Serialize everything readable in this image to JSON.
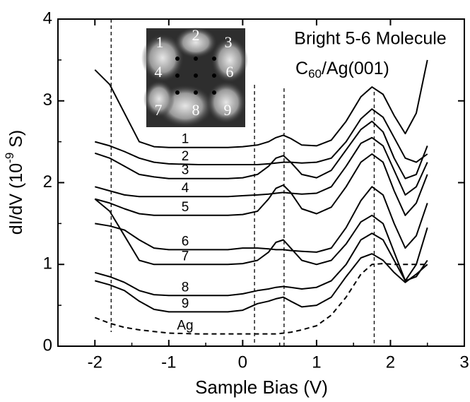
{
  "chart_data": {
    "type": "line",
    "annotation": {
      "title": "Bright 5-6 Molecule",
      "formula": [
        "C",
        "60",
        "/Ag(001)"
      ]
    },
    "x_label": "Sample Bias (V)",
    "y_label": [
      "dI/dV (10",
      "-9",
      " S)"
    ],
    "xlim": [
      -2.5,
      3
    ],
    "ylim": [
      0,
      4
    ],
    "xticks": [
      -2,
      -1,
      0,
      1,
      2,
      3
    ],
    "yticks": [
      0,
      1,
      2,
      3,
      4
    ],
    "vlines": [
      -1.78,
      0.16,
      0.56,
      1.78
    ],
    "inset_labels": [
      "1",
      "2",
      "3",
      "4",
      "6",
      "7",
      "8",
      "9"
    ],
    "x": [
      -2,
      -1.8,
      -1.6,
      -1.4,
      -1.2,
      -1,
      -0.6,
      -0.2,
      0,
      0.2,
      0.35,
      0.45,
      0.55,
      0.65,
      0.8,
      1.0,
      1.2,
      1.4,
      1.6,
      1.75,
      1.9,
      2.05,
      2.2,
      2.35,
      2.5
    ],
    "series": [
      {
        "name": "1",
        "color": "#000000",
        "values": [
          3.38,
          3.2,
          2.85,
          2.5,
          2.44,
          2.43,
          2.43,
          2.43,
          2.44,
          2.46,
          2.5,
          2.55,
          2.58,
          2.54,
          2.46,
          2.45,
          2.52,
          2.75,
          3.05,
          3.17,
          3.08,
          2.82,
          2.6,
          2.85,
          3.5
        ]
      },
      {
        "name": "2",
        "color": "#000000",
        "values": [
          2.5,
          2.45,
          2.38,
          2.3,
          2.25,
          2.23,
          2.22,
          2.22,
          2.22,
          2.22,
          2.23,
          2.24,
          2.25,
          2.25,
          2.24,
          2.25,
          2.3,
          2.5,
          2.78,
          2.9,
          2.8,
          2.55,
          2.3,
          2.25,
          2.35
        ]
      },
      {
        "name": "3",
        "color": "#000000",
        "values": [
          2.36,
          2.3,
          2.2,
          2.1,
          2.07,
          2.05,
          2.05,
          2.05,
          2.06,
          2.1,
          2.2,
          2.3,
          2.33,
          2.25,
          2.1,
          2.06,
          2.15,
          2.4,
          2.65,
          2.75,
          2.62,
          2.3,
          2.05,
          2.1,
          2.45
        ]
      },
      {
        "name": "4",
        "color": "#000000",
        "values": [
          1.95,
          1.9,
          1.85,
          1.83,
          1.83,
          1.83,
          1.83,
          1.83,
          1.84,
          1.85,
          1.86,
          1.87,
          1.88,
          1.87,
          1.86,
          1.87,
          1.95,
          2.2,
          2.48,
          2.55,
          2.45,
          2.15,
          1.85,
          1.95,
          2.25
        ]
      },
      {
        "name": "5",
        "color": "#000000",
        "values": [
          1.8,
          1.75,
          1.68,
          1.62,
          1.6,
          1.6,
          1.6,
          1.6,
          1.61,
          1.65,
          1.8,
          1.93,
          1.97,
          1.88,
          1.68,
          1.62,
          1.7,
          1.95,
          2.25,
          2.35,
          2.25,
          1.9,
          1.6,
          1.75,
          2.1
        ]
      },
      {
        "name": "6",
        "color": "#000000",
        "values": [
          1.5,
          1.47,
          1.42,
          1.3,
          1.2,
          1.18,
          1.18,
          1.18,
          1.2,
          1.2,
          1.19,
          1.18,
          1.18,
          1.17,
          1.16,
          1.15,
          1.2,
          1.45,
          1.78,
          1.95,
          1.85,
          1.5,
          1.2,
          1.35,
          1.75
        ]
      },
      {
        "name": "7",
        "color": "#000000",
        "values": [
          1.8,
          1.65,
          1.35,
          1.05,
          1.0,
          1.0,
          1.0,
          1.0,
          1.01,
          1.05,
          1.15,
          1.27,
          1.3,
          1.2,
          1.05,
          1.0,
          1.05,
          1.25,
          1.52,
          1.6,
          1.5,
          1.15,
          0.8,
          1.0,
          1.45
        ]
      },
      {
        "name": "8",
        "color": "#000000",
        "values": [
          0.9,
          0.85,
          0.78,
          0.68,
          0.63,
          0.62,
          0.62,
          0.62,
          0.64,
          0.68,
          0.7,
          0.72,
          0.73,
          0.72,
          0.7,
          0.72,
          0.8,
          1.0,
          1.3,
          1.38,
          1.3,
          1.05,
          0.8,
          0.85,
          1.05
        ]
      },
      {
        "name": "9",
        "color": "#000000",
        "values": [
          0.8,
          0.75,
          0.68,
          0.55,
          0.45,
          0.42,
          0.42,
          0.42,
          0.44,
          0.52,
          0.55,
          0.58,
          0.6,
          0.55,
          0.48,
          0.5,
          0.6,
          0.85,
          1.08,
          1.13,
          1.05,
          0.9,
          0.78,
          0.88,
          1.0
        ]
      },
      {
        "name": "Ag",
        "color": "#000000",
        "dashed": true,
        "values": [
          0.35,
          0.28,
          0.23,
          0.2,
          0.18,
          0.16,
          0.15,
          0.15,
          0.15,
          0.15,
          0.15,
          0.15,
          0.16,
          0.17,
          0.2,
          0.25,
          0.38,
          0.6,
          0.88,
          1.0,
          1.01,
          1.0,
          1.0,
          1.0,
          1.0
        ]
      }
    ]
  }
}
